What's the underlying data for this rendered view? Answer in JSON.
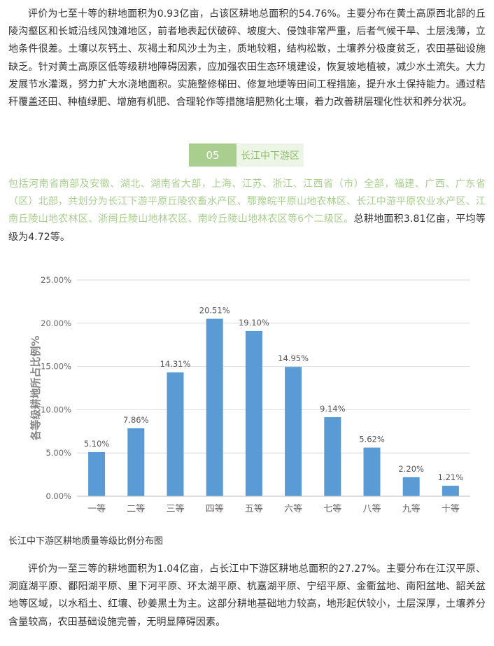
{
  "paragraph_top": "评价为七至十等的耕地面积为0.93亿亩，占该区耕地总面积的54.76%。主要分布在黄土高原西北部的丘陵沟壑区和长城沿线风蚀滩地区，前者地表起伏破碎、坡度大、侵蚀非常严重，后者气候干旱、土层浅薄，立地条件很差。土壤以灰钙土、灰褐土和风沙土为主，质地较粗，结构松散，土壤养分极度贫乏，农田基础设施缺乏。针对黄土高原区低等级耕地障碍因素，应加强农田生态环境建设，恢复坡地植被，减少水土流失。大力发展节水灌溉，努力扩大水浇地面积。实施整修梯田、修复地埂等田间工程措施，提升水土保持能力。通过秸秆覆盖还田、种植绿肥、增施有机肥、合理轮作等措施培肥熟化土壤，着力改善耕层理化性状和养分状况。",
  "section": {
    "number": "05",
    "title": "长江中下游区"
  },
  "region_intro": {
    "green_text": "包括河南省南部及安徽、湖北、湖南省大部，上海、江苏、浙江、江西省（市）全部，福建、广西、广东省（区）北部，共划分为长江下游平原丘陵农畜水产区、鄂豫皖平原山地农林区、长江中游平原农业水产区、江南丘陵山地农林区、浙闽丘陵山地林农区、南岭丘陵山地林农区等6个二级区。",
    "dark_text": "总耕地面积3.81亿亩，平均等级为4.72等。"
  },
  "chart_data": {
    "type": "bar",
    "categories": [
      "一等",
      "二等",
      "三等",
      "四等",
      "五等",
      "六等",
      "七等",
      "八等",
      "九等",
      "十等"
    ],
    "values": [
      5.1,
      7.86,
      14.31,
      20.51,
      19.1,
      14.95,
      9.14,
      5.62,
      2.2,
      1.21
    ],
    "value_labels": [
      "5.10%",
      "7.86%",
      "14.31%",
      "20.51%",
      "19.10%",
      "14.95%",
      "9.14%",
      "5.62%",
      "2.20%",
      "1.21%"
    ],
    "ylabel": "各等级耕地所占比例%",
    "ylim": [
      0,
      25
    ],
    "yticks": [
      0,
      5,
      10,
      15,
      20,
      25
    ],
    "ytick_labels": [
      "0.00%",
      "5.00%",
      "10.00%",
      "15.00%",
      "20.00%",
      "25.00%"
    ],
    "grid": true,
    "bar_color": "#5b9bd5"
  },
  "caption": "长江中下游区耕地质量等级比例分布图",
  "paragraph_bottom": "评价为一至三等的耕地面积为1.04亿亩，占长江中下游区耕地总面积的27.27%。主要分布在江汉平原、洞庭湖平原、鄱阳湖平原、里下河平原、环太湖平原、杭嘉湖平原、宁绍平原、金衢盆地、南阳盆地、韶关盆地等区域，以水稻土、红壤、砂姜黑土为主。这部分耕地基础地力较高，地形起伏较小，土层深厚，土壤养分含量较高，农田基础设施完善，无明显障碍因素。",
  "colors": {
    "accent_green": "#a9cf8f",
    "accent_green_light": "#edf6e6",
    "text": "#333333"
  }
}
